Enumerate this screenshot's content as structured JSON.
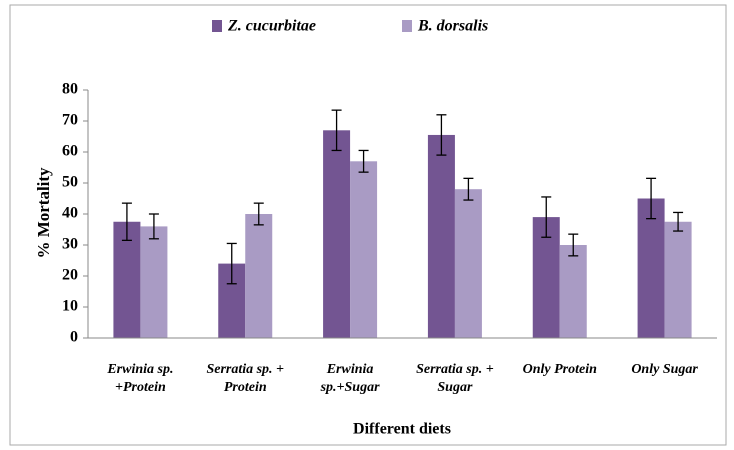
{
  "chart_data": {
    "type": "bar",
    "xlabel": "Different diets",
    "ylabel": "% Mortality",
    "categories": [
      "Erwinia sp.\n+Protein",
      "Serratia sp. +\nProtein",
      "Erwinia\nsp.+Sugar",
      "Serratia sp. +\nSugar",
      "Only Protein",
      "Only Sugar"
    ],
    "series": [
      {
        "name": "Z. cucurbitae",
        "color": "#735592",
        "values": [
          37.5,
          24,
          67,
          65.5,
          39,
          45
        ],
        "errors": [
          6,
          6.5,
          6.5,
          6.5,
          6.5,
          6.5
        ]
      },
      {
        "name": "B. dorsalis",
        "color": "#a99bc4",
        "values": [
          36,
          40,
          57,
          48,
          30,
          37.5
        ],
        "errors": [
          4,
          3.5,
          3.5,
          3.5,
          3.5,
          3
        ]
      }
    ],
    "ylim": [
      0,
      80
    ],
    "yticks": [
      0,
      10,
      20,
      30,
      40,
      50,
      60,
      70,
      80
    ],
    "legend": "top"
  }
}
